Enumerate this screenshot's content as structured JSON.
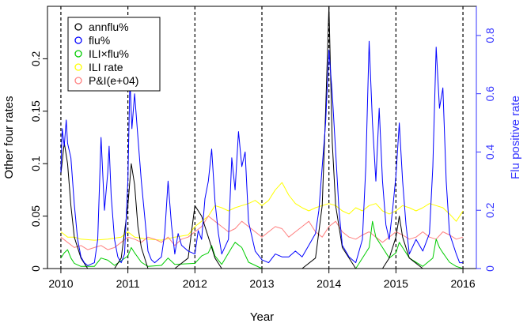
{
  "chart_data": {
    "type": "line",
    "title": "",
    "xlabel": "Year",
    "ylabel_left": "Other four rates",
    "ylabel_right": "Flu positive rate",
    "xlim": [
      2010,
      2016
    ],
    "ylim_left": [
      0,
      0.25
    ],
    "ylim_right": [
      0,
      0.9
    ],
    "x_ticks": [
      "2010",
      "2011",
      "2012",
      "2013",
      "2014",
      "2015",
      "2016"
    ],
    "y_left_ticks": [
      "0",
      "0.05",
      "0.1",
      "0.15",
      "0.2"
    ],
    "y_right_ticks": [
      "0",
      "0.2",
      "0.4",
      "0.6",
      "0.8"
    ],
    "vertical_dashed_lines": [
      2010,
      2011,
      2012,
      2013,
      2014,
      2015,
      2016
    ],
    "legend_position": "top-left",
    "colors": {
      "annflu": "#000000",
      "flu": "#0000ff",
      "ilixflu": "#00cc00",
      "ili_rate": "#ffff00",
      "pi": "#ff8080",
      "right_axis": "#3333ff"
    },
    "series": [
      {
        "name": "annflu%",
        "axis": "left",
        "color": "#000000",
        "x": [
          2010.0,
          2010.05,
          2010.1,
          2010.15,
          2010.2,
          2010.3,
          2010.4,
          2010.5,
          2010.6,
          2010.7,
          2010.8,
          2010.9,
          2011.0,
          2011.05,
          2011.1,
          2011.15,
          2011.2,
          2011.3,
          2011.4,
          2011.5,
          2011.7,
          2011.9,
          2012.0,
          2012.1,
          2012.2,
          2012.25,
          2012.3,
          2012.4,
          2012.6,
          2012.8,
          2012.9,
          2013.0,
          2013.2,
          2013.4,
          2013.6,
          2013.8,
          2013.9,
          2013.95,
          2014.0,
          2014.05,
          2014.1,
          2014.2,
          2014.4,
          2014.6,
          2014.8,
          2014.9,
          2015.0,
          2015.05,
          2015.1,
          2015.2,
          2015.4,
          2015.6,
          2015.8,
          2015.9,
          2016.0
        ],
        "values": [
          0.09,
          0.12,
          0.1,
          0.06,
          0.03,
          0.01,
          0.0,
          0.0,
          0.0,
          0.0,
          0.0,
          0.01,
          0.06,
          0.1,
          0.08,
          0.04,
          0.02,
          0.0,
          0.0,
          0.0,
          0.0,
          0.01,
          0.06,
          0.05,
          0.03,
          0.02,
          0.01,
          0.0,
          0.0,
          0.0,
          0.0,
          0.0,
          0.0,
          0.0,
          0.0,
          0.01,
          0.06,
          0.15,
          0.25,
          0.12,
          0.06,
          0.02,
          0.0,
          0.0,
          0.0,
          0.01,
          0.03,
          0.05,
          0.03,
          0.01,
          0.0,
          0.0,
          0.0,
          0.0,
          0.0
        ]
      },
      {
        "name": "flu%",
        "axis": "right",
        "color": "#0000ff",
        "x": [
          2010.0,
          2010.02,
          2010.05,
          2010.08,
          2010.1,
          2010.15,
          2010.2,
          2010.25,
          2010.3,
          2010.35,
          2010.4,
          2010.5,
          2010.55,
          2010.6,
          2010.65,
          2010.7,
          2010.72,
          2010.75,
          2010.8,
          2010.85,
          2010.9,
          2010.95,
          2011.0,
          2011.03,
          2011.06,
          2011.1,
          2011.15,
          2011.2,
          2011.25,
          2011.3,
          2011.35,
          2011.4,
          2011.5,
          2011.55,
          2011.6,
          2011.65,
          2011.7,
          2011.75,
          2011.8,
          2011.9,
          2012.0,
          2012.05,
          2012.1,
          2012.15,
          2012.2,
          2012.25,
          2012.3,
          2012.35,
          2012.4,
          2012.5,
          2012.55,
          2012.6,
          2012.65,
          2012.7,
          2012.75,
          2012.8,
          2012.9,
          2013.0,
          2013.1,
          2013.2,
          2013.3,
          2013.4,
          2013.5,
          2013.6,
          2013.7,
          2013.8,
          2013.85,
          2013.9,
          2013.95,
          2014.0,
          2014.05,
          2014.1,
          2014.15,
          2014.2,
          2014.3,
          2014.4,
          2014.5,
          2014.55,
          2014.6,
          2014.65,
          2014.7,
          2014.75,
          2014.8,
          2014.85,
          2014.9,
          2014.95,
          2015.0,
          2015.05,
          2015.1,
          2015.15,
          2015.2,
          2015.3,
          2015.4,
          2015.5,
          2015.55,
          2015.6,
          2015.65,
          2015.7,
          2015.75,
          2015.8,
          2015.9,
          2015.95,
          2016.0
        ],
        "values": [
          0.33,
          0.48,
          0.42,
          0.51,
          0.43,
          0.38,
          0.22,
          0.1,
          0.04,
          0.02,
          0.01,
          0.02,
          0.1,
          0.45,
          0.2,
          0.33,
          0.42,
          0.25,
          0.1,
          0.04,
          0.02,
          0.05,
          0.3,
          0.65,
          0.48,
          0.6,
          0.45,
          0.3,
          0.18,
          0.06,
          0.03,
          0.02,
          0.04,
          0.12,
          0.3,
          0.15,
          0.05,
          0.12,
          0.08,
          0.06,
          0.05,
          0.13,
          0.1,
          0.24,
          0.3,
          0.41,
          0.23,
          0.12,
          0.05,
          0.1,
          0.38,
          0.27,
          0.47,
          0.35,
          0.4,
          0.16,
          0.06,
          0.03,
          0.02,
          0.05,
          0.04,
          0.04,
          0.06,
          0.04,
          0.08,
          0.12,
          0.2,
          0.35,
          0.5,
          0.75,
          0.6,
          0.4,
          0.2,
          0.08,
          0.04,
          0.02,
          0.1,
          0.35,
          0.78,
          0.5,
          0.3,
          0.55,
          0.3,
          0.15,
          0.1,
          0.2,
          0.32,
          0.5,
          0.3,
          0.15,
          0.05,
          0.1,
          0.06,
          0.12,
          0.35,
          0.76,
          0.55,
          0.62,
          0.3,
          0.12,
          0.05,
          0.02,
          0.02
        ]
      },
      {
        "name": "ILI×flu%",
        "axis": "left",
        "color": "#00cc00",
        "x": [
          2010.0,
          2010.05,
          2010.1,
          2010.15,
          2010.2,
          2010.3,
          2010.5,
          2010.6,
          2010.7,
          2010.8,
          2011.0,
          2011.05,
          2011.1,
          2011.2,
          2011.3,
          2011.5,
          2011.6,
          2011.7,
          2012.0,
          2012.1,
          2012.2,
          2012.25,
          2012.3,
          2012.4,
          2012.55,
          2012.6,
          2012.7,
          2012.8,
          2013.0,
          2013.5,
          2013.8,
          2013.9,
          2013.95,
          2014.0,
          2014.05,
          2014.1,
          2014.2,
          2014.4,
          2014.6,
          2014.65,
          2014.7,
          2014.8,
          2014.9,
          2015.0,
          2015.05,
          2015.1,
          2015.2,
          2015.4,
          2015.55,
          2015.6,
          2015.65,
          2015.7,
          2015.8,
          2015.9,
          2016.0
        ],
        "values": [
          0.01,
          0.015,
          0.018,
          0.01,
          0.005,
          0.002,
          0.002,
          0.01,
          0.008,
          0.003,
          0.012,
          0.02,
          0.015,
          0.006,
          0.002,
          0.003,
          0.01,
          0.004,
          0.005,
          0.012,
          0.015,
          0.022,
          0.012,
          0.004,
          0.02,
          0.025,
          0.02,
          0.006,
          0.0,
          0.0,
          0.0,
          0.0,
          0.0,
          0.0,
          0.0,
          0.0,
          0.0,
          0.0,
          0.02,
          0.045,
          0.03,
          0.02,
          0.01,
          0.015,
          0.025,
          0.02,
          0.01,
          0.002,
          0.01,
          0.028,
          0.02,
          0.015,
          0.006,
          0.002,
          0.0
        ]
      },
      {
        "name": "ILI rate",
        "axis": "left",
        "color": "#ffff00",
        "x": [
          2010.0,
          2010.1,
          2010.2,
          2010.3,
          2010.5,
          2010.7,
          2010.9,
          2011.0,
          2011.1,
          2011.3,
          2011.5,
          2011.7,
          2011.9,
          2012.0,
          2012.1,
          2012.2,
          2012.3,
          2012.4,
          2012.5,
          2012.6,
          2012.7,
          2012.8,
          2012.9,
          2013.0,
          2013.1,
          2013.2,
          2013.3,
          2013.4,
          2013.5,
          2013.6,
          2013.7,
          2013.8,
          2013.9,
          2014.0,
          2014.1,
          2014.2,
          2014.3,
          2014.4,
          2014.5,
          2014.6,
          2014.7,
          2014.8,
          2014.9,
          2015.0,
          2015.1,
          2015.2,
          2015.3,
          2015.4,
          2015.5,
          2015.6,
          2015.7,
          2015.8,
          2015.9,
          2016.0
        ],
        "values": [
          0.035,
          0.03,
          0.03,
          0.028,
          0.027,
          0.028,
          0.03,
          0.035,
          0.03,
          0.028,
          0.027,
          0.03,
          0.032,
          0.04,
          0.045,
          0.05,
          0.06,
          0.058,
          0.055,
          0.058,
          0.06,
          0.062,
          0.065,
          0.06,
          0.065,
          0.075,
          0.082,
          0.07,
          0.062,
          0.058,
          0.055,
          0.058,
          0.06,
          0.062,
          0.06,
          0.055,
          0.052,
          0.058,
          0.055,
          0.06,
          0.062,
          0.055,
          0.052,
          0.055,
          0.06,
          0.058,
          0.055,
          0.058,
          0.062,
          0.06,
          0.058,
          0.052,
          0.045,
          0.055
        ]
      },
      {
        "name": "P&I(e+04)",
        "axis": "left",
        "color": "#ff8080",
        "x": [
          2010.0,
          2010.1,
          2010.2,
          2010.3,
          2010.4,
          2010.5,
          2010.6,
          2010.7,
          2010.8,
          2010.9,
          2011.0,
          2011.1,
          2011.2,
          2011.3,
          2011.4,
          2011.5,
          2011.6,
          2011.7,
          2011.8,
          2011.9,
          2012.0,
          2012.1,
          2012.2,
          2012.3,
          2012.4,
          2012.5,
          2012.6,
          2012.7,
          2012.8,
          2012.9,
          2013.0,
          2013.1,
          2013.2,
          2013.3,
          2013.4,
          2013.5,
          2013.6,
          2013.7,
          2013.8,
          2013.9,
          2014.0,
          2014.1,
          2014.2,
          2014.3,
          2014.4,
          2014.5,
          2014.6,
          2014.7,
          2014.8,
          2014.9,
          2015.0,
          2015.1,
          2015.2,
          2015.3,
          2015.4,
          2015.5,
          2015.6,
          2015.7,
          2015.8,
          2015.9,
          2016.0
        ],
        "values": [
          0.03,
          0.025,
          0.02,
          0.022,
          0.018,
          0.02,
          0.022,
          0.018,
          0.02,
          0.025,
          0.03,
          0.028,
          0.025,
          0.03,
          0.028,
          0.025,
          0.03,
          0.022,
          0.028,
          0.03,
          0.035,
          0.04,
          0.05,
          0.045,
          0.04,
          0.035,
          0.038,
          0.045,
          0.04,
          0.035,
          0.03,
          0.035,
          0.04,
          0.038,
          0.03,
          0.035,
          0.04,
          0.045,
          0.035,
          0.03,
          0.04,
          0.045,
          0.035,
          0.03,
          0.028,
          0.032,
          0.035,
          0.03,
          0.025,
          0.03,
          0.035,
          0.032,
          0.028,
          0.03,
          0.035,
          0.03,
          0.028,
          0.035,
          0.032,
          0.028,
          0.03
        ]
      }
    ]
  }
}
